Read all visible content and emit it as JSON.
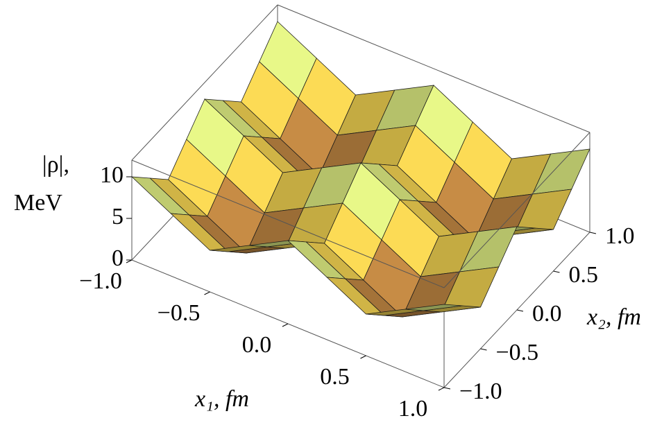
{
  "chart_data": {
    "type": "surface",
    "xlabel": "x₁, fm",
    "ylabel": "x₂, fm",
    "zlabel": [
      "|ρ|,",
      "MeV"
    ],
    "x": [
      -1,
      -0.75,
      -0.5,
      -0.25,
      0,
      0.25,
      0.5,
      0.75,
      1
    ],
    "y": [
      -1,
      -0.75,
      -0.5,
      -0.25,
      0,
      0.25,
      0.5,
      0.75,
      1
    ],
    "z": [
      [
        10,
        7.5,
        5,
        7.5,
        10,
        7.5,
        5,
        7.5,
        10
      ],
      [
        7.5,
        5,
        2.5,
        5,
        7.5,
        5,
        2.5,
        5,
        7.5
      ],
      [
        5,
        2.5,
        0,
        2.5,
        5,
        2.5,
        0,
        2.5,
        5
      ],
      [
        7.5,
        5,
        2.5,
        5,
        7.5,
        5,
        2.5,
        5,
        7.5
      ],
      [
        10,
        7.5,
        5,
        7.5,
        10,
        7.5,
        5,
        7.5,
        10
      ],
      [
        7.5,
        5,
        2.5,
        5,
        7.5,
        5,
        2.5,
        5,
        7.5
      ],
      [
        5,
        2.5,
        0,
        2.5,
        5,
        2.5,
        0,
        2.5,
        5
      ],
      [
        7.5,
        5,
        2.5,
        5,
        7.5,
        5,
        2.5,
        5,
        7.5
      ],
      [
        10,
        7.5,
        5,
        7.5,
        10,
        7.5,
        5,
        7.5,
        10
      ]
    ],
    "xlim": [
      -1,
      1
    ],
    "ylim": [
      -1,
      1
    ],
    "zlim": [
      0,
      12
    ],
    "xticks": [
      {
        "value": -1,
        "label": "−1.0"
      },
      {
        "value": -0.5,
        "label": "−0.5"
      },
      {
        "value": 0,
        "label": "0.0"
      },
      {
        "value": 0.5,
        "label": "0.5"
      },
      {
        "value": 1,
        "label": "1.0"
      }
    ],
    "yticks": [
      {
        "value": -1,
        "label": "−1.0"
      },
      {
        "value": -0.5,
        "label": "−0.5"
      },
      {
        "value": 0,
        "label": "0.0"
      },
      {
        "value": 0.5,
        "label": "0.5"
      },
      {
        "value": 1,
        "label": "1.0"
      }
    ],
    "zticks": [
      0,
      5,
      10
    ]
  }
}
